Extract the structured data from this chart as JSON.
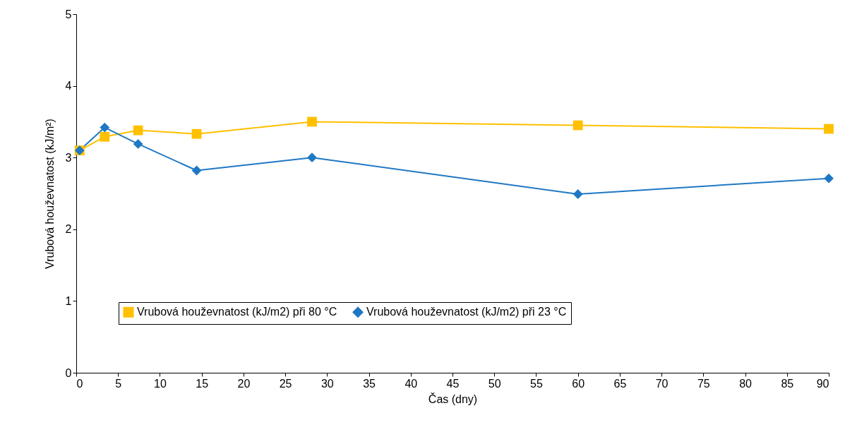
{
  "chart_data": {
    "type": "line",
    "xlabel": "Čas (dny)",
    "ylabel": "Vrubová houževnatost (kJ/m²)",
    "x": [
      0.4,
      3.4,
      7.4,
      14.4,
      28.2,
      60,
      90
    ],
    "series": [
      {
        "name": "Vrubová houževnatost (kJ/m2) při 80 °C",
        "color": "#ffc000",
        "marker": "square",
        "values": [
          3.1,
          3.29,
          3.38,
          3.33,
          3.5,
          3.45,
          3.4
        ]
      },
      {
        "name": "Vrubová houževnatost (kJ/m2) při 23 °C",
        "color": "#1f78c4",
        "marker": "diamond",
        "values": [
          3.1,
          3.42,
          3.19,
          2.82,
          3.0,
          2.49,
          2.71
        ]
      }
    ],
    "xlim": [
      0,
      90
    ],
    "xticks": [
      0,
      5,
      10,
      15,
      20,
      25,
      30,
      35,
      40,
      45,
      50,
      55,
      60,
      65,
      70,
      75,
      80,
      85,
      90
    ],
    "ylim": [
      0,
      5
    ],
    "yticks": [
      0,
      1,
      2,
      3,
      4,
      5
    ],
    "grid": false,
    "legend": "bottom",
    "line_style": "solid"
  }
}
